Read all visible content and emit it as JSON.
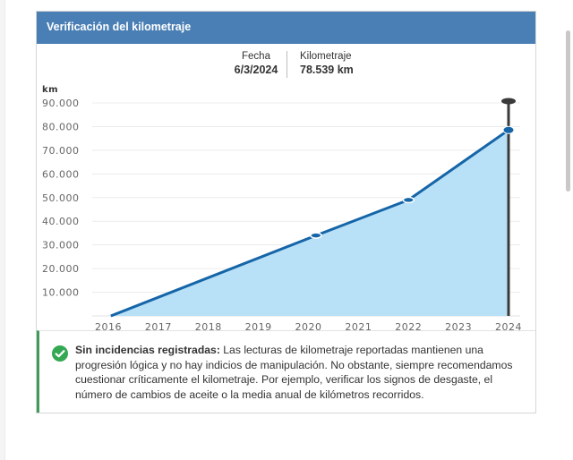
{
  "panel": {
    "title": "Verificación del kilometraje"
  },
  "latest_reading": {
    "date_label": "Fecha",
    "date_value": "6/3/2024",
    "km_label": "Kilometraje",
    "km_value": "78.539 km"
  },
  "chart_data": {
    "type": "area",
    "title": "",
    "ylabel": "km",
    "xlabel": "",
    "ylim": [
      0,
      90000
    ],
    "y_ticks": [
      "10.000",
      "20.000",
      "30.000",
      "40.000",
      "50.000",
      "60.000",
      "70.000",
      "80.000",
      "90.000"
    ],
    "y_tick_values": [
      10000,
      20000,
      30000,
      40000,
      50000,
      60000,
      70000,
      80000,
      90000
    ],
    "x_ticks": [
      "2016",
      "2017",
      "2018",
      "2019",
      "2020",
      "2021",
      "2022",
      "2023",
      "2024"
    ],
    "xlim": [
      2016,
      2024
    ],
    "series": [
      {
        "name": "Kilometraje",
        "x": [
          2016.05,
          2020.15,
          2022.0,
          2024.0
        ],
        "y": [
          0,
          34000,
          49000,
          78539
        ]
      }
    ],
    "marker": {
      "x": 2024.0,
      "top": 90000
    },
    "colors": {
      "line": "#1565a8",
      "fill": "#b8e0f7",
      "marker": "#3a3a3a"
    }
  },
  "notice": {
    "title": "Sin incidencias registradas:",
    "text": "Las lecturas de kilometraje reportadas mantienen una progresión lógica y no hay indicios de manipulación. No obstante, siempre recomendamos cuestionar críticamente el kilometraje. Por ejemplo, verificar los signos de desgaste, el número de cambios de aceite o la media anual de kilómetros recorridos.",
    "icon": "check-circle-icon",
    "color": "#34a853"
  }
}
